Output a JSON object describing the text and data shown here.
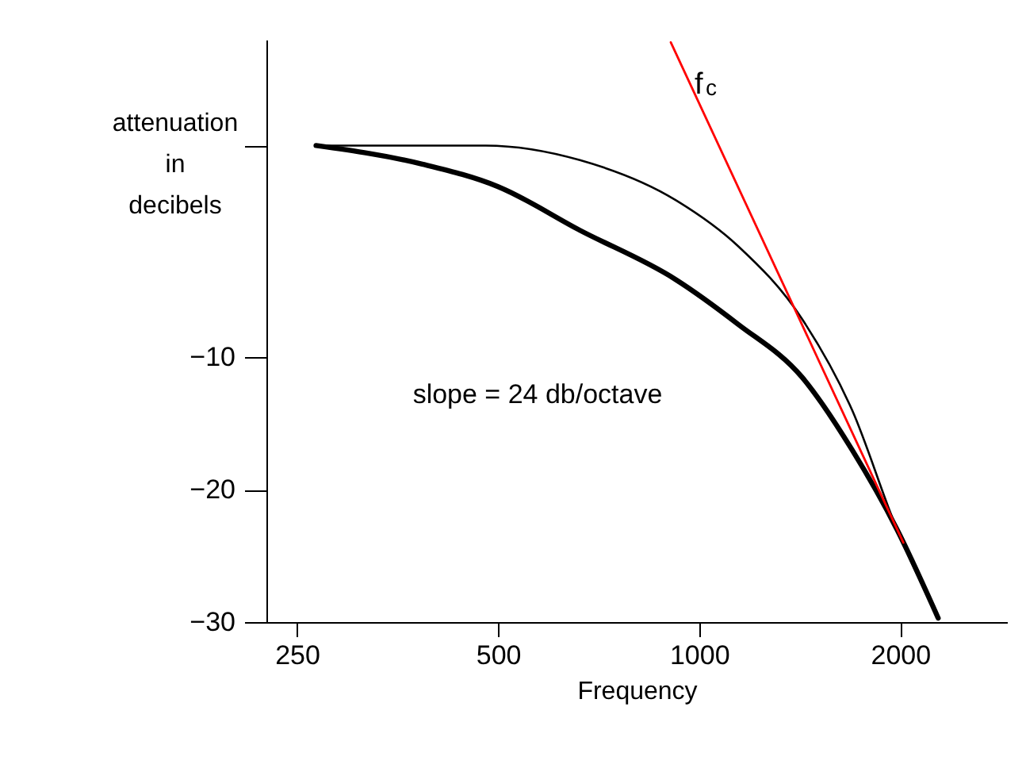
{
  "chart_data": {
    "type": "line",
    "xlabel": "Frequency",
    "ylabel": "attenuation in decibels",
    "log": "x",
    "xlim": [
      225,
      2890
    ],
    "xticks": [
      250,
      500,
      1000,
      2000
    ],
    "ylim": [
      -30,
      14
    ],
    "yticks": [
      {
        "value": 6,
        "label": null
      },
      -10,
      -20,
      -30
    ],
    "grid": false,
    "marker": "none",
    "line_style": "solid",
    "series": [
      {
        "color": "#000000",
        "x": [
          267,
          479,
          663,
          921,
          1144,
          1426,
          1695,
          1978,
          2280
        ],
        "values": [
          6.0,
          6.0,
          4.9,
          1.9,
          -1.6,
          -7.1,
          -14.0,
          -23.0,
          -29.7
        ]
      },
      {
        "color": "#000000",
        "x": [
          267,
          385,
          500,
          663,
          921,
          1144,
          1426,
          1695,
          1978,
          2280
        ],
        "values": [
          6.0,
          4.6,
          2.9,
          -0.4,
          -4.1,
          -7.5,
          -11.5,
          -17.0,
          -23.0,
          -29.7
        ]
      },
      {
        "color": "#ff0000",
        "x": [
          907,
          2022
        ],
        "values": [
          13.8,
          -24.0
        ]
      }
    ],
    "annotations": [
      "f$_{c}$",
      "slope = 24 db/octave"
    ]
  }
}
